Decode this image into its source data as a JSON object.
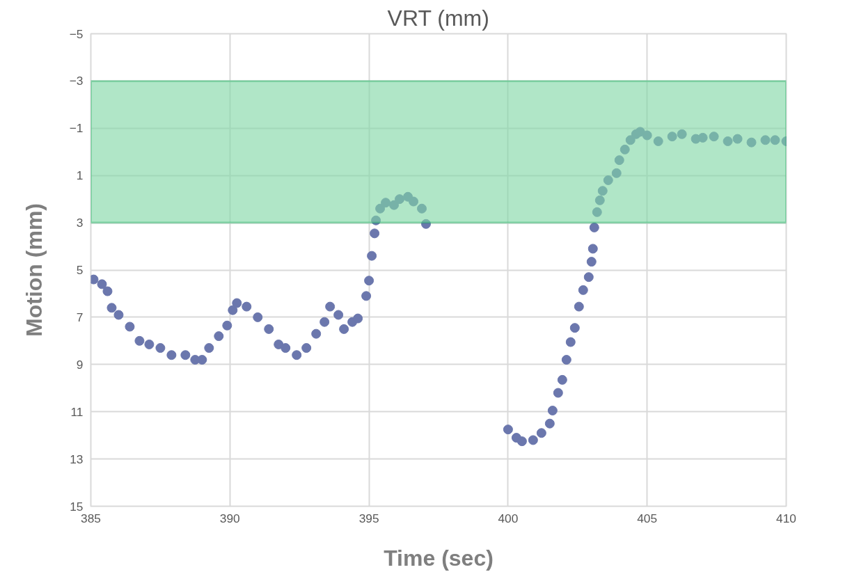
{
  "chart_data": {
    "type": "scatter",
    "title": "VRT (mm)",
    "xlabel": "Time (sec)",
    "ylabel": "Motion (mm)",
    "x": [
      385.1,
      385.4,
      385.6,
      385.75,
      386.0,
      386.4,
      386.75,
      387.1,
      387.5,
      387.9,
      388.4,
      388.75,
      389.0,
      389.25,
      389.6,
      389.9,
      390.1,
      390.25,
      390.6,
      391.0,
      391.4,
      391.75,
      392.0,
      392.4,
      392.75,
      393.1,
      393.4,
      393.6,
      393.9,
      394.1,
      394.4,
      394.6,
      394.9,
      395.0,
      395.1,
      395.2,
      395.25,
      395.4,
      395.6,
      395.9,
      396.1,
      396.4,
      396.6,
      396.9,
      397.05,
      null,
      400.0,
      400.3,
      400.5,
      400.9,
      401.2,
      401.5,
      401.6,
      401.8,
      401.95,
      402.1,
      402.25,
      402.4,
      402.55,
      402.7,
      402.9,
      403.0,
      403.05,
      403.1,
      403.2,
      403.3,
      403.4,
      403.6,
      403.9,
      404.0,
      404.2,
      404.4,
      404.6,
      404.75,
      405.0,
      405.4,
      405.9,
      406.25,
      406.75,
      407.0,
      407.4,
      407.9,
      408.25,
      408.75,
      409.25,
      409.6,
      410.0
    ],
    "series": [
      {
        "color": "#6b77ad",
        "values": [
          5.4,
          5.6,
          5.9,
          6.6,
          6.9,
          7.4,
          8.0,
          8.15,
          8.3,
          8.6,
          8.6,
          8.8,
          8.8,
          8.3,
          7.8,
          7.35,
          6.7,
          6.4,
          6.55,
          7.0,
          7.5,
          8.15,
          8.3,
          8.6,
          8.3,
          7.7,
          7.2,
          6.55,
          6.9,
          7.5,
          7.2,
          7.05,
          6.1,
          5.45,
          4.4,
          3.45,
          2.9,
          2.4,
          2.15,
          2.25,
          2.0,
          1.9,
          2.1,
          2.4,
          3.05,
          null,
          11.75,
          12.1,
          12.25,
          12.2,
          11.9,
          11.5,
          10.95,
          10.2,
          9.65,
          8.8,
          8.05,
          7.45,
          6.55,
          5.85,
          5.3,
          4.65,
          4.1,
          3.2,
          2.55,
          2.05,
          1.65,
          1.2,
          0.9,
          0.35,
          -0.1,
          -0.5,
          -0.75,
          -0.85,
          -0.7,
          -0.45,
          -0.65,
          -0.75,
          -0.55,
          -0.6,
          -0.65,
          -0.45,
          -0.55,
          -0.4,
          -0.5,
          -0.5,
          -0.45
        ]
      }
    ],
    "xlim": [
      385,
      410
    ],
    "xticks": [
      385,
      390,
      395,
      400,
      405,
      410
    ],
    "ylim": [
      15,
      -5
    ],
    "yticks": [
      -5,
      -3,
      -1,
      1,
      3,
      5,
      7,
      9,
      11,
      13,
      15
    ],
    "bands": [
      {
        "axis": "y",
        "from": -3,
        "to": 3,
        "color": "#7fd6a4"
      }
    ],
    "grid": true,
    "marker": "circle"
  }
}
